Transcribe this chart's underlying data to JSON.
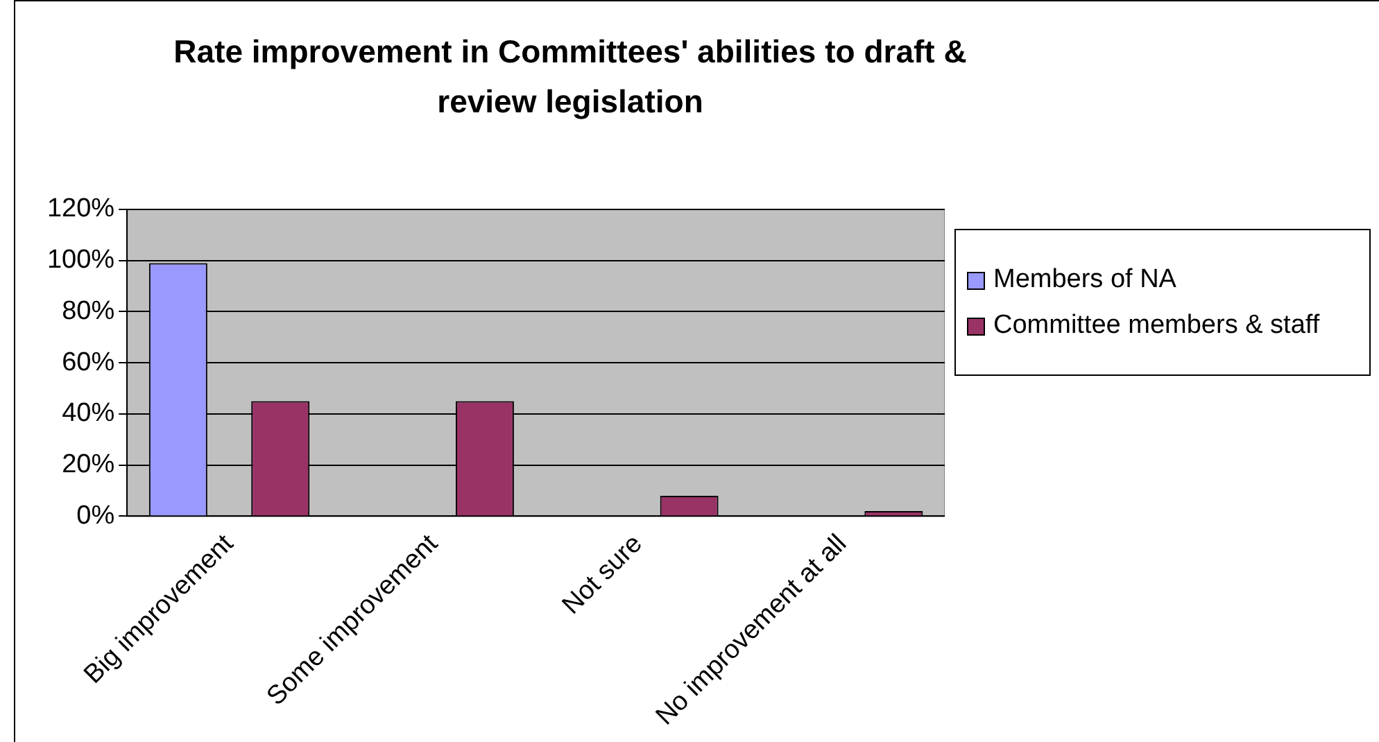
{
  "chart_data": {
    "type": "bar",
    "title": "Rate improvement in Committees' abilities to draft & review legislation",
    "categories": [
      "Big improvement",
      "Some improvement",
      "Not sure",
      "No improvement at all"
    ],
    "series": [
      {
        "name": "Members of NA",
        "color": "#9999ff",
        "values": [
          99,
          null,
          null,
          null
        ]
      },
      {
        "name": "Committee members & staff",
        "color": "#993366",
        "values": [
          45,
          45,
          8,
          2
        ]
      }
    ],
    "ylim": [
      0,
      120
    ],
    "yticks": [
      {
        "value": 0,
        "label": "0%"
      },
      {
        "value": 20,
        "label": "20%"
      },
      {
        "value": 40,
        "label": "40%"
      },
      {
        "value": 60,
        "label": "60%"
      },
      {
        "value": 80,
        "label": "80%"
      },
      {
        "value": 100,
        "label": "100%"
      },
      {
        "value": 120,
        "label": "120%"
      }
    ],
    "grid": "y",
    "legend": "right"
  }
}
